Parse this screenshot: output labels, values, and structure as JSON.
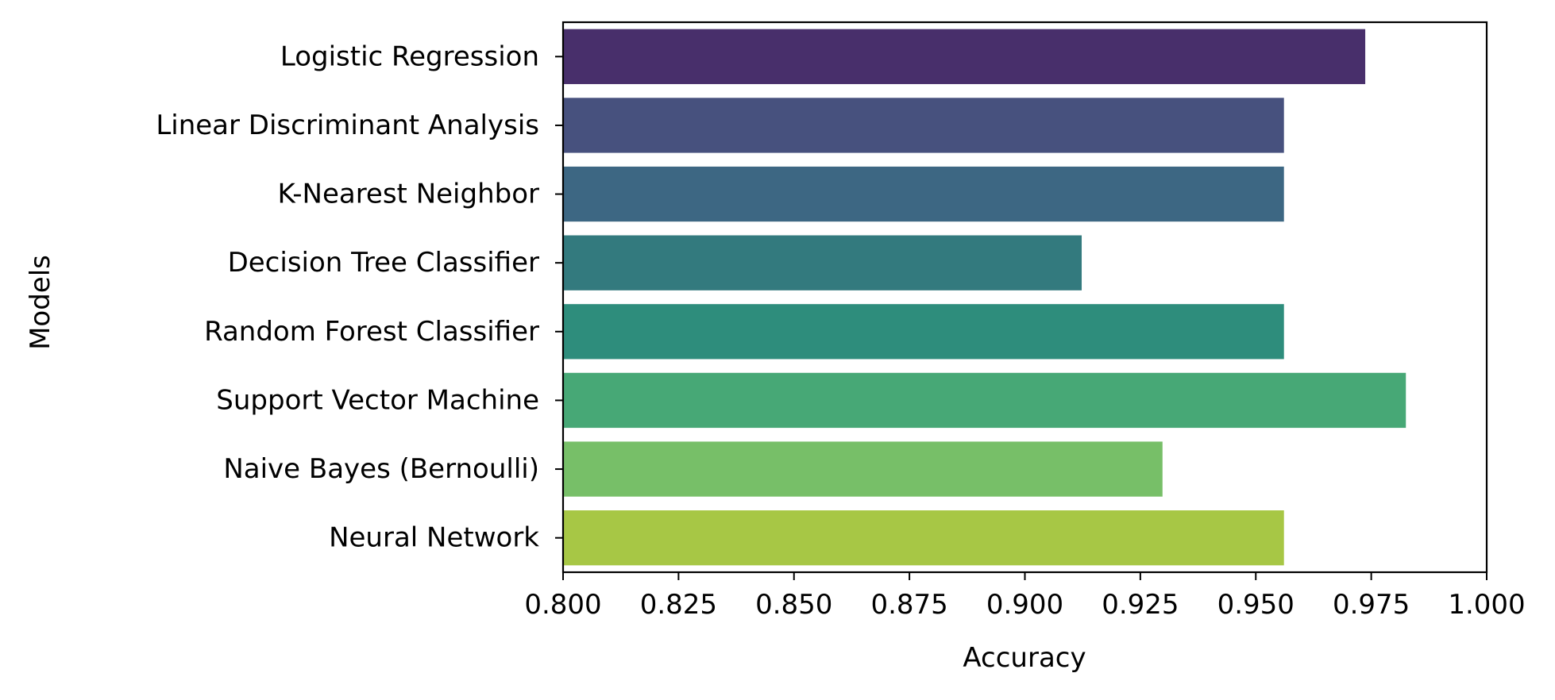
{
  "chart_data": {
    "type": "bar",
    "orientation": "horizontal",
    "title": "",
    "xlabel": "Accuracy",
    "ylabel": "Models",
    "xlim": [
      0.8,
      1.0
    ],
    "xticks": [
      0.8,
      0.825,
      0.85,
      0.875,
      0.9,
      0.925,
      0.95,
      0.975,
      1.0
    ],
    "xtick_labels": [
      "0.800",
      "0.825",
      "0.850",
      "0.875",
      "0.900",
      "0.925",
      "0.950",
      "0.975",
      "1.000"
    ],
    "categories": [
      "Logistic Regression",
      "Linear Discriminant Analysis",
      "K-Nearest Neighbor",
      "Decision Tree Classifier",
      "Random Forest Classifier",
      "Support Vector Machine",
      "Naive Bayes (Bernoulli)",
      "Neural Network"
    ],
    "values": [
      0.9737,
      0.9561,
      0.9561,
      0.9123,
      0.9561,
      0.9825,
      0.9298,
      0.9561
    ],
    "colors": [
      "#482f6b",
      "#47517e",
      "#3d6783",
      "#337a7e",
      "#2e8d7c",
      "#47a876",
      "#77bf68",
      "#a7c745"
    ],
    "grid": false,
    "legend": "none"
  }
}
